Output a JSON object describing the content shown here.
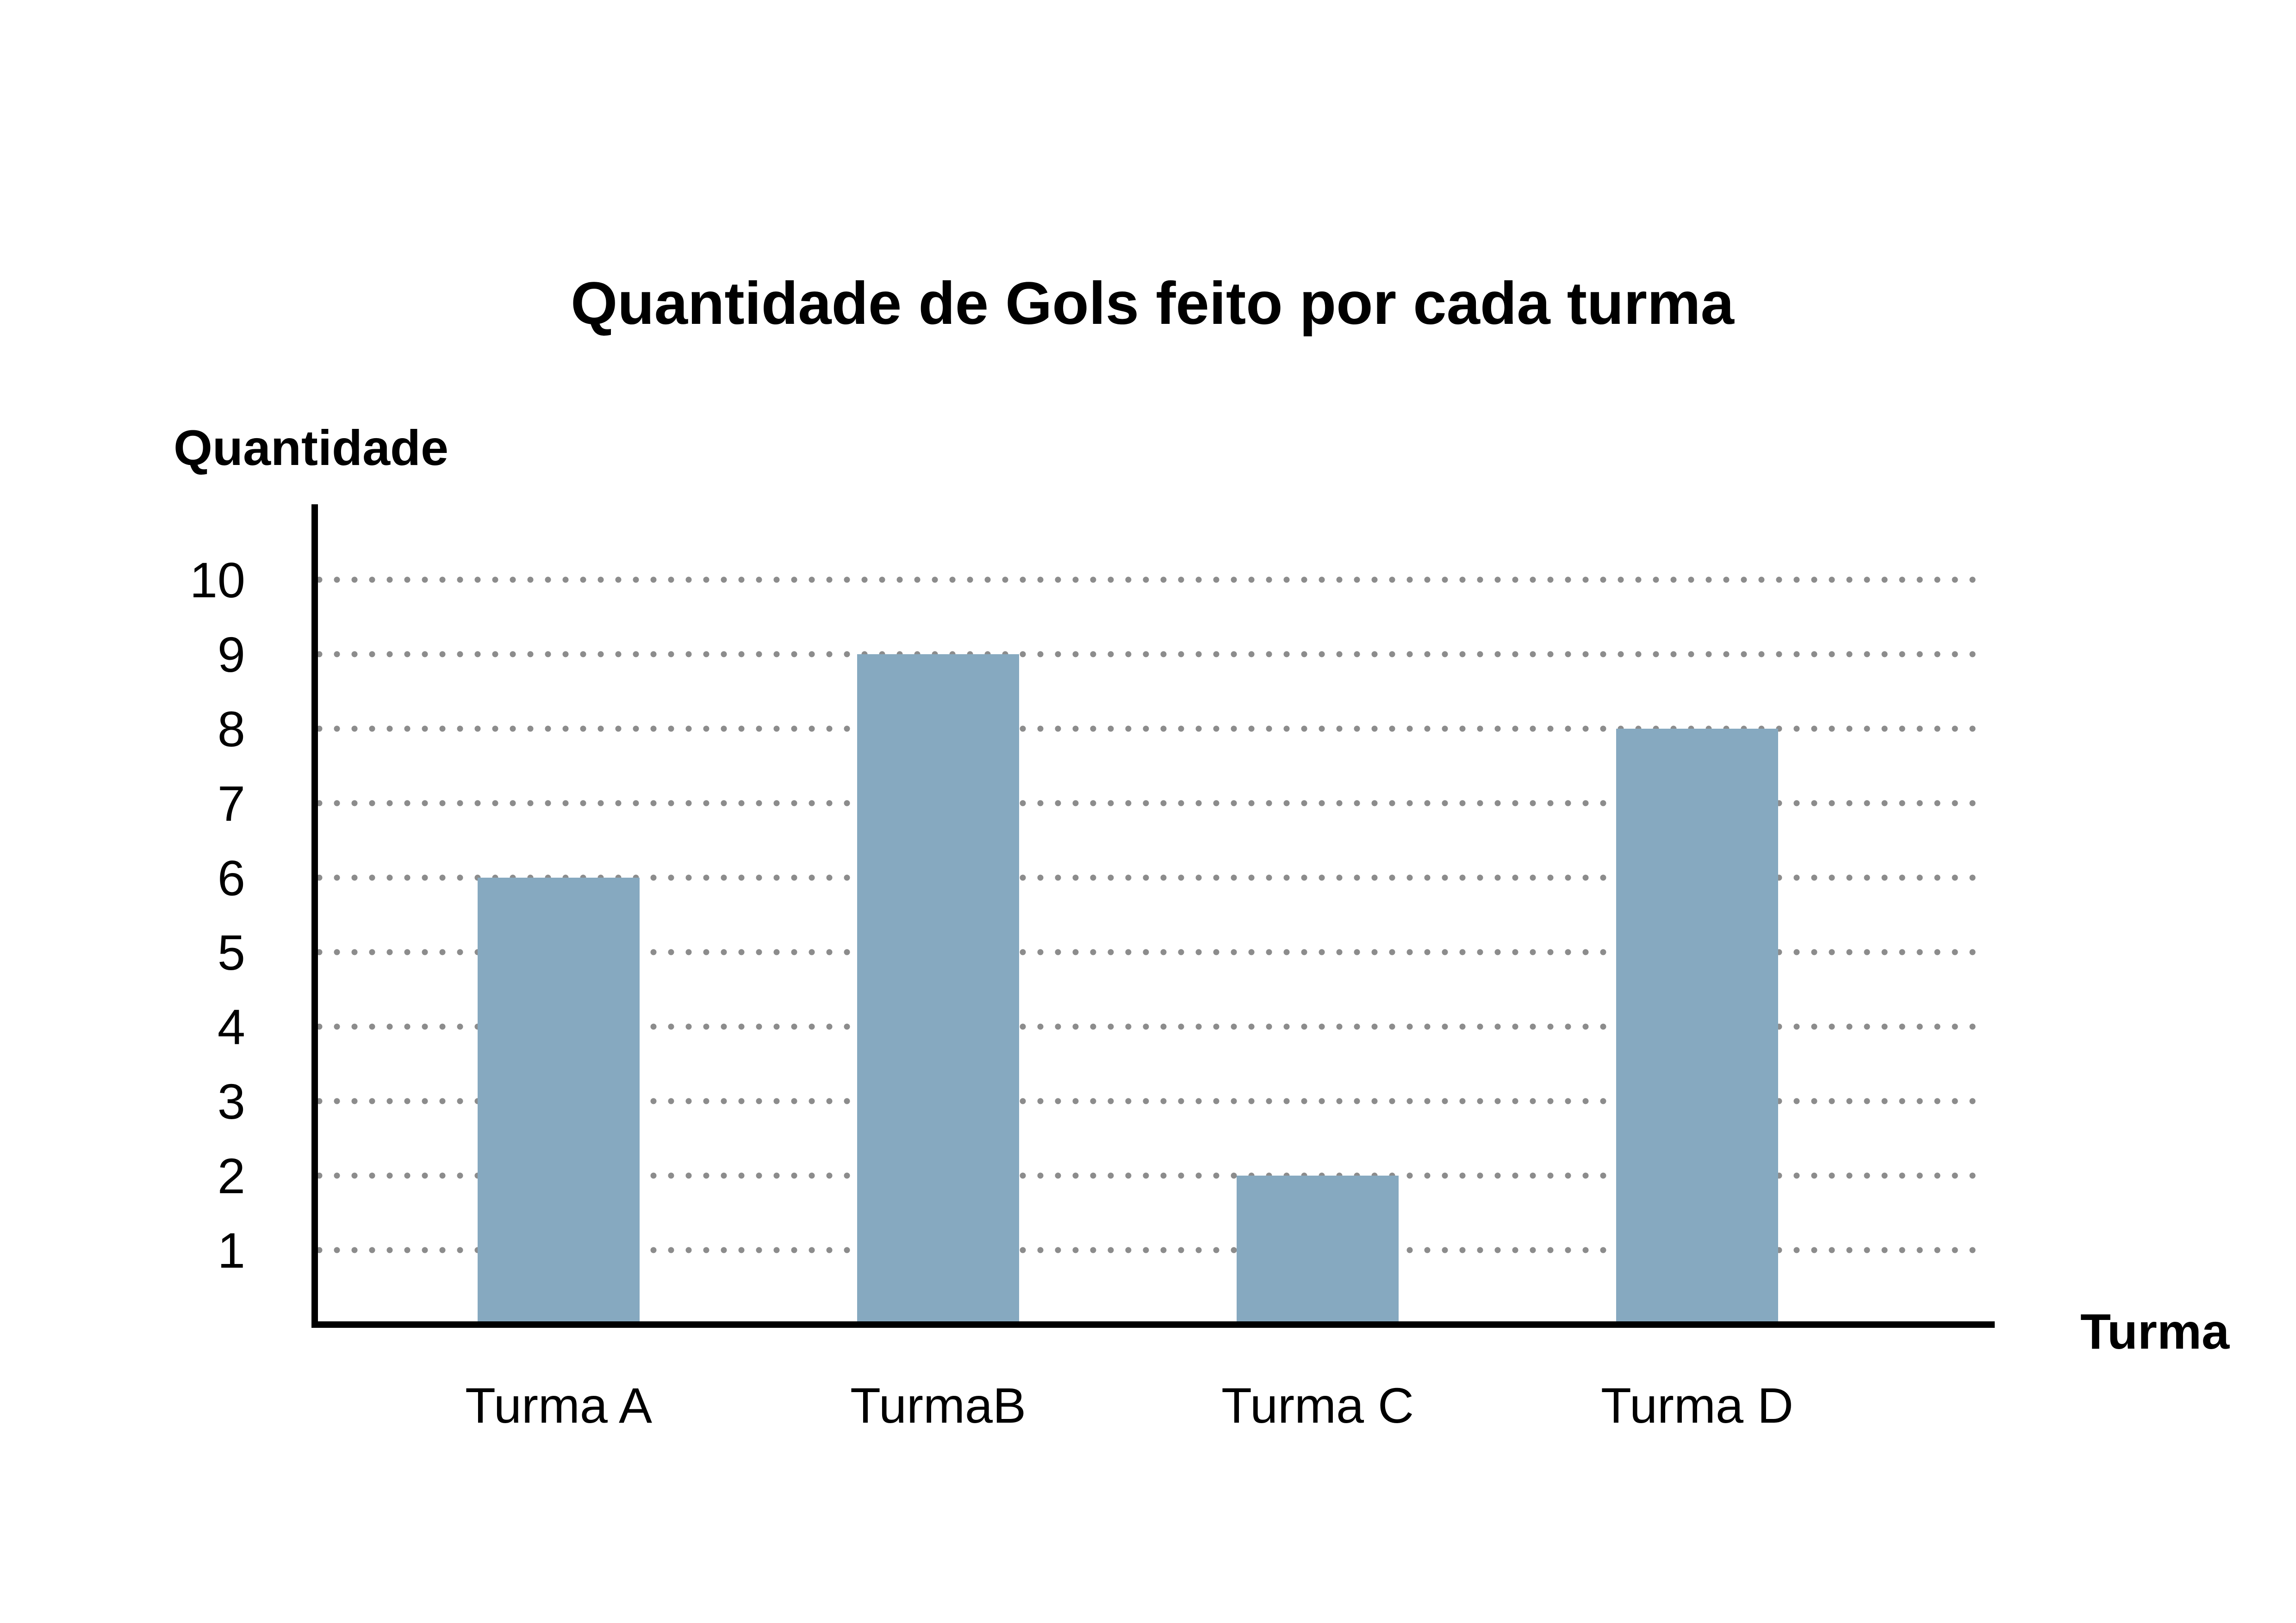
{
  "chart_data": {
    "type": "bar",
    "title": "Quantidade de Gols feito por cada turma",
    "xlabel": "Turma",
    "ylabel": "Quantidade",
    "categories": [
      "Turma A",
      "TurmaB",
      "Turma C",
      "Turma D"
    ],
    "values": [
      6,
      9,
      2,
      8
    ],
    "yticks": [
      "1",
      "2",
      "3",
      "4",
      "5",
      "6",
      "7",
      "8",
      "9",
      "10"
    ],
    "ylim": [
      0,
      10
    ],
    "grid": "dotted horizontal",
    "legend": "none",
    "bar_color": "#86a9c0",
    "grid_color": "#8c8c8c",
    "axis_color": "#000000"
  }
}
